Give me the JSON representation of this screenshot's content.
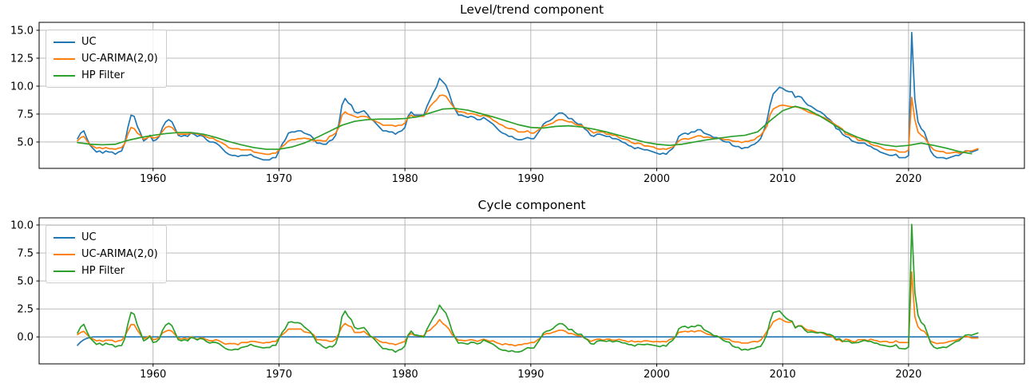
{
  "figure": {
    "background": "#ffffff",
    "grid_color": "#b0b0b0",
    "spine_color": "#000000",
    "text_color": "#000000"
  },
  "chart_data": [
    {
      "type": "line",
      "title": "Level/trend component",
      "xlabel": "",
      "ylabel": "",
      "xlim": [
        1950.95,
        2029.2
      ],
      "ylim": [
        2.64,
        15.71
      ],
      "xticks": [
        1960,
        1970,
        1980,
        1990,
        2000,
        2010,
        2020
      ],
      "xtick_labels": [
        "1960",
        "1970",
        "1980",
        "1990",
        "2000",
        "2010",
        "2020"
      ],
      "yticks": [
        5.0,
        7.5,
        10.0,
        12.5,
        15.0
      ],
      "ytick_labels": [
        "5.0",
        "7.5",
        "10.0",
        "12.5",
        "15.0"
      ],
      "grid": true,
      "legend_position": "upper left",
      "series": [
        {
          "name": "UC",
          "color": "#1f77b4",
          "x_start": 1954.0,
          "x_step": 0.25,
          "values": [
            5.3,
            5.8,
            6.0,
            5.3,
            4.7,
            4.4,
            4.1,
            4.2,
            4.0,
            4.2,
            4.1,
            4.1,
            3.9,
            4.1,
            4.2,
            4.9,
            6.3,
            7.4,
            7.3,
            6.4,
            5.8,
            5.1,
            5.3,
            5.6,
            5.1,
            5.2,
            5.5,
            6.3,
            6.8,
            7.0,
            6.8,
            6.2,
            5.6,
            5.5,
            5.6,
            5.5,
            5.8,
            5.7,
            5.5,
            5.6,
            5.5,
            5.2,
            5.0,
            5.0,
            4.9,
            4.7,
            4.4,
            4.1,
            3.9,
            3.8,
            3.8,
            3.7,
            3.8,
            3.8,
            3.8,
            3.9,
            3.7,
            3.6,
            3.5,
            3.4,
            3.4,
            3.4,
            3.6,
            3.6,
            4.2,
            4.8,
            5.2,
            5.8,
            5.9,
            5.9,
            6.0,
            6.0,
            5.8,
            5.7,
            5.6,
            5.3,
            4.9,
            4.9,
            4.8,
            4.8,
            5.1,
            5.2,
            5.6,
            6.6,
            8.3,
            8.9,
            8.5,
            8.3,
            7.7,
            7.6,
            7.7,
            7.8,
            7.5,
            7.1,
            6.9,
            6.6,
            6.3,
            6.0,
            6.0,
            5.9,
            5.9,
            5.7,
            5.9,
            6.0,
            6.3,
            7.3,
            7.7,
            7.4,
            7.4,
            7.4,
            7.4,
            8.2,
            8.8,
            9.4,
            9.9,
            10.7,
            10.4,
            10.1,
            9.4,
            8.5,
            7.9,
            7.4,
            7.4,
            7.3,
            7.2,
            7.3,
            7.2,
            7.0,
            7.0,
            7.2,
            7.0,
            6.8,
            6.6,
            6.3,
            6.0,
            5.8,
            5.7,
            5.5,
            5.5,
            5.3,
            5.2,
            5.2,
            5.3,
            5.4,
            5.3,
            5.3,
            5.7,
            6.1,
            6.6,
            6.8,
            6.9,
            7.1,
            7.4,
            7.6,
            7.6,
            7.4,
            7.1,
            7.1,
            6.8,
            6.6,
            6.6,
            6.2,
            6.0,
            5.6,
            5.5,
            5.7,
            5.7,
            5.6,
            5.5,
            5.5,
            5.3,
            5.3,
            5.2,
            5.0,
            4.9,
            4.7,
            4.6,
            4.4,
            4.5,
            4.4,
            4.3,
            4.3,
            4.2,
            4.1,
            4.0,
            3.9,
            4.0,
            3.9,
            4.2,
            4.4,
            4.8,
            5.5,
            5.7,
            5.8,
            5.7,
            5.9,
            5.9,
            6.1,
            6.1,
            5.8,
            5.7,
            5.6,
            5.4,
            5.4,
            5.3,
            5.1,
            5.0,
            5.0,
            4.7,
            4.6,
            4.6,
            4.4,
            4.5,
            4.5,
            4.7,
            4.8,
            5.0,
            5.3,
            6.0,
            6.9,
            8.3,
            9.3,
            9.6,
            9.9,
            9.8,
            9.6,
            9.5,
            9.5,
            9.0,
            9.1,
            9.0,
            8.6,
            8.3,
            8.2,
            8.0,
            7.8,
            7.7,
            7.5,
            7.2,
            7.0,
            6.7,
            6.2,
            6.1,
            5.7,
            5.5,
            5.4,
            5.1,
            5.0,
            4.9,
            4.9,
            4.9,
            4.7,
            4.6,
            4.4,
            4.3,
            4.1,
            4.0,
            3.9,
            3.8,
            3.8,
            3.9,
            3.6,
            3.6,
            3.6,
            3.8,
            14.8,
            8.8,
            6.8,
            6.2,
            5.9,
            5.1,
            4.2,
            3.8,
            3.6,
            3.6,
            3.6,
            3.5,
            3.6,
            3.7,
            3.8,
            3.8,
            4.0,
            4.2,
            4.2,
            4.1,
            4.2,
            4.3
          ]
        },
        {
          "name": "UC-ARIMA(2,0)",
          "color": "#ff7f0e",
          "x_start": 1954.0,
          "x_step": 0.25,
          "values": [
            5.1,
            5.4,
            5.5,
            5.1,
            4.75,
            4.6,
            4.45,
            4.5,
            4.4,
            4.5,
            4.4,
            4.4,
            4.35,
            4.45,
            4.5,
            4.85,
            5.7,
            6.3,
            6.2,
            5.8,
            5.6,
            5.25,
            5.35,
            5.5,
            5.35,
            5.4,
            5.55,
            5.95,
            6.3,
            6.4,
            6.3,
            6.0,
            5.7,
            5.7,
            5.7,
            5.7,
            5.8,
            5.8,
            5.7,
            5.7,
            5.6,
            5.45,
            5.35,
            5.35,
            5.15,
            5.05,
            4.9,
            4.75,
            4.5,
            4.4,
            4.4,
            4.4,
            4.3,
            4.3,
            4.3,
            4.3,
            4.1,
            4.05,
            4.0,
            3.95,
            3.9,
            3.9,
            4.0,
            4.0,
            4.3,
            4.6,
            4.8,
            5.1,
            5.2,
            5.2,
            5.3,
            5.3,
            5.35,
            5.3,
            5.25,
            5.1,
            5.15,
            5.15,
            5.1,
            5.1,
            5.5,
            5.6,
            5.8,
            6.3,
            7.4,
            7.7,
            7.5,
            7.4,
            7.3,
            7.2,
            7.3,
            7.3,
            7.25,
            7.05,
            6.95,
            6.8,
            6.7,
            6.5,
            6.5,
            6.5,
            6.5,
            6.4,
            6.5,
            6.5,
            6.7,
            7.2,
            7.4,
            7.25,
            7.3,
            7.3,
            7.3,
            7.7,
            8.2,
            8.5,
            8.75,
            9.15,
            9.2,
            9.1,
            8.7,
            8.3,
            7.95,
            7.7,
            7.7,
            7.65,
            7.5,
            7.55,
            7.5,
            7.4,
            7.3,
            7.4,
            7.3,
            7.2,
            6.95,
            6.8,
            6.6,
            6.5,
            6.3,
            6.2,
            6.2,
            6.1,
            5.9,
            5.9,
            5.9,
            6.0,
            5.8,
            5.8,
            6.0,
            6.2,
            6.4,
            6.5,
            6.6,
            6.7,
            6.9,
            7.0,
            7.0,
            6.9,
            6.8,
            6.8,
            6.6,
            6.5,
            6.5,
            6.3,
            6.2,
            6.0,
            5.8,
            5.9,
            5.9,
            5.9,
            5.7,
            5.7,
            5.6,
            5.6,
            5.4,
            5.3,
            5.25,
            5.15,
            4.95,
            4.85,
            4.9,
            4.85,
            4.65,
            4.65,
            4.6,
            4.55,
            4.4,
            4.35,
            4.4,
            4.35,
            4.45,
            4.55,
            4.75,
            5.1,
            5.25,
            5.3,
            5.25,
            5.35,
            5.45,
            5.55,
            5.55,
            5.4,
            5.45,
            5.4,
            5.3,
            5.3,
            5.35,
            5.25,
            5.2,
            5.2,
            5.1,
            5.05,
            5.05,
            4.95,
            5.05,
            5.05,
            5.15,
            5.2,
            5.45,
            5.6,
            5.95,
            6.4,
            7.45,
            7.95,
            8.1,
            8.25,
            8.3,
            8.25,
            8.2,
            8.15,
            8.15,
            8.1,
            8.0,
            7.85,
            7.7,
            7.6,
            7.5,
            7.4,
            7.3,
            7.2,
            7.05,
            6.9,
            6.7,
            6.5,
            6.35,
            6.15,
            5.7,
            5.65,
            5.5,
            5.45,
            5.15,
            5.15,
            5.15,
            5.05,
            4.8,
            4.7,
            4.65,
            4.55,
            4.4,
            4.3,
            4.3,
            4.3,
            4.25,
            4.1,
            4.1,
            4.1,
            4.3,
            9.0,
            7.0,
            5.9,
            5.6,
            5.4,
            5.0,
            4.6,
            4.3,
            4.2,
            4.15,
            4.15,
            4.0,
            4.0,
            4.05,
            4.1,
            4.0,
            4.05,
            4.15,
            4.2,
            4.2,
            4.3,
            4.4
          ]
        },
        {
          "name": "HP Filter",
          "color": "#2ca02c",
          "x_start": 1954.0,
          "x_step": 1.0,
          "values": [
            4.95,
            4.8,
            4.75,
            4.8,
            5.15,
            5.4,
            5.6,
            5.75,
            5.85,
            5.85,
            5.7,
            5.4,
            5.05,
            4.75,
            4.5,
            4.35,
            4.35,
            4.55,
            4.9,
            5.4,
            5.95,
            6.5,
            6.85,
            7.0,
            7.05,
            7.05,
            7.1,
            7.25,
            7.6,
            7.95,
            8.0,
            7.85,
            7.55,
            7.25,
            6.9,
            6.55,
            6.3,
            6.25,
            6.4,
            6.45,
            6.35,
            6.15,
            5.9,
            5.6,
            5.3,
            5.0,
            4.8,
            4.7,
            4.8,
            5.0,
            5.2,
            5.35,
            5.5,
            5.6,
            5.9,
            6.9,
            7.8,
            8.2,
            7.9,
            7.3,
            6.6,
            5.9,
            5.4,
            5.0,
            4.75,
            4.6,
            4.7,
            4.9,
            4.7,
            4.45,
            4.15,
            3.95
          ]
        }
      ]
    },
    {
      "type": "line",
      "title": "Cycle component",
      "xlabel": "",
      "ylabel": "",
      "xlim": [
        1950.95,
        2029.2
      ],
      "ylim": [
        -2.41,
        10.64
      ],
      "xticks": [
        1960,
        1970,
        1980,
        1990,
        2000,
        2010,
        2020
      ],
      "xtick_labels": [
        "1960",
        "1970",
        "1980",
        "1990",
        "2000",
        "2010",
        "2020"
      ],
      "yticks": [
        0.0,
        2.5,
        5.0,
        7.5,
        10.0
      ],
      "ytick_labels": [
        "0.0",
        "2.5",
        "5.0",
        "7.5",
        "10.0"
      ],
      "grid": true,
      "legend_position": "upper left",
      "derivation_note": "cycle = UC observed series minus each trend from the Level/trend chart",
      "series": [
        {
          "name": "UC",
          "color": "#1f77b4",
          "derived": {
            "op": "subtract",
            "chart": 0,
            "minuend": 0,
            "subtrahend": 0
          },
          "prefix_values": [
            -0.75,
            -0.45,
            -0.25,
            -0.12,
            -0.05,
            0.0
          ]
        },
        {
          "name": "UC-ARIMA(2,0)",
          "color": "#ff7f0e",
          "derived": {
            "op": "subtract",
            "chart": 0,
            "minuend": 0,
            "subtrahend": 1
          }
        },
        {
          "name": "HP Filter",
          "color": "#2ca02c",
          "derived": {
            "op": "subtract",
            "chart": 0,
            "minuend": 0,
            "subtrahend": 2
          }
        }
      ]
    }
  ]
}
